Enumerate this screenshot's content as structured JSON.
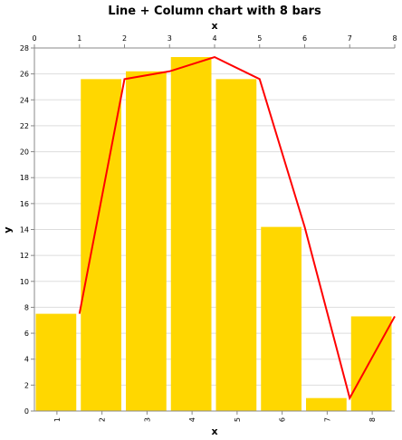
{
  "chart_data": {
    "type": "bar",
    "title": "Line + Column chart with 8 bars",
    "xlabel": "x",
    "x2label": "x",
    "ylabel": "y",
    "categories": [
      "1",
      "2",
      "3",
      "4",
      "5",
      "6",
      "7",
      "8"
    ],
    "series": [
      {
        "type": "bar",
        "values": [
          7.5,
          25.6,
          26.2,
          27.3,
          25.6,
          14.2,
          1.0,
          7.3
        ],
        "color": "#ffd700"
      },
      {
        "type": "line",
        "x": [
          1,
          2,
          3,
          4,
          5,
          6,
          7,
          8
        ],
        "values": [
          7.5,
          25.6,
          26.2,
          27.3,
          25.6,
          14.2,
          1.0,
          7.3
        ],
        "color": "#ff0000"
      }
    ],
    "ylim": [
      0,
      28
    ],
    "yticks": [
      0,
      2,
      4,
      6,
      8,
      10,
      12,
      14,
      16,
      18,
      20,
      22,
      24,
      26,
      28
    ],
    "x2lim": [
      0,
      8
    ],
    "x2ticks": [
      0,
      1,
      2,
      3,
      4,
      5,
      6,
      7,
      8
    ],
    "grid": true
  }
}
